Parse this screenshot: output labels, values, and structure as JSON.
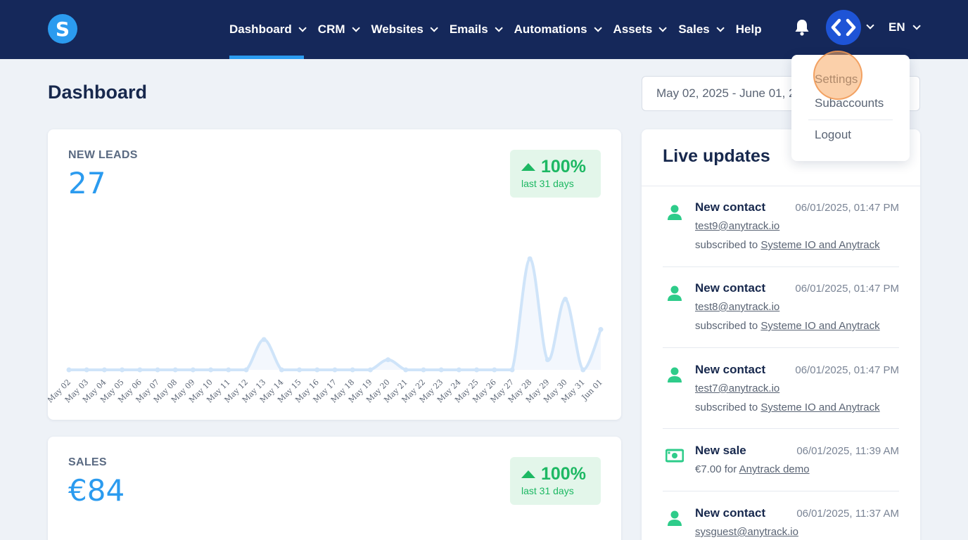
{
  "brand": {
    "logo_letter": "S"
  },
  "nav": {
    "items": [
      {
        "label": "Dashboard",
        "active": true
      },
      {
        "label": "CRM"
      },
      {
        "label": "Websites"
      },
      {
        "label": "Emails"
      },
      {
        "label": "Automations"
      },
      {
        "label": "Assets"
      },
      {
        "label": "Sales"
      }
    ],
    "help": "Help",
    "language": "EN"
  },
  "page": {
    "title": "Dashboard",
    "date_range": "May 02, 2025 - June 01, 2025"
  },
  "leads": {
    "label": "NEW LEADS",
    "value": "27",
    "change": "100%",
    "period": "last 31 days"
  },
  "sales": {
    "label": "SALES",
    "value": "€84",
    "change": "100%",
    "period": "last 31 days"
  },
  "chart_data": {
    "type": "area",
    "categories": [
      "May 02",
      "May 03",
      "May 04",
      "May 05",
      "May 06",
      "May 07",
      "May 08",
      "May 09",
      "May 10",
      "May 11",
      "May 12",
      "May 13",
      "May 14",
      "May 15",
      "May 16",
      "May 17",
      "May 18",
      "May 19",
      "May 20",
      "May 21",
      "May 22",
      "May 23",
      "May 24",
      "May 25",
      "May 26",
      "May 27",
      "May 28",
      "May 29",
      "May 30",
      "May 31",
      "Jun 01"
    ],
    "values": [
      0,
      0,
      0,
      0,
      0,
      0,
      0,
      0,
      0,
      0,
      0,
      3,
      0,
      0,
      0,
      0,
      0,
      0,
      1,
      0,
      0,
      0,
      0,
      0,
      0,
      0,
      11,
      1,
      7,
      0,
      4
    ],
    "ylim": [
      0,
      11
    ],
    "color": "#cfe4f9",
    "fill": "#f3f7fd"
  },
  "live_updates": {
    "title": "Live updates",
    "items": [
      {
        "type": "New contact",
        "time": "06/01/2025, 01:47 PM",
        "email": "test9@anytrack.io",
        "prefix": "subscribed to",
        "target": "Systeme IO and Anytrack",
        "icon": "user-icon"
      },
      {
        "type": "New contact",
        "time": "06/01/2025, 01:47 PM",
        "email": "test8@anytrack.io",
        "prefix": "subscribed to",
        "target": "Systeme IO and Anytrack",
        "icon": "user-icon"
      },
      {
        "type": "New contact",
        "time": "06/01/2025, 01:47 PM",
        "email": "test7@anytrack.io",
        "prefix": "subscribed to",
        "target": "Systeme IO and Anytrack",
        "icon": "user-icon"
      },
      {
        "type": "New sale",
        "time": "06/01/2025, 11:39 AM",
        "amount": "€7.00 for",
        "product": "Anytrack demo",
        "icon": "money-icon"
      },
      {
        "type": "New contact",
        "time": "06/01/2025, 11:37 AM",
        "email": "sysguest@anytrack.io",
        "icon": "user-icon"
      }
    ]
  },
  "user_menu": {
    "items": [
      "Settings",
      "Subaccounts",
      "Logout"
    ]
  },
  "colors": {
    "nav_bg": "#15285a",
    "accent": "#2b9bef",
    "success": "#1db863",
    "avatar": "#1e54d6"
  }
}
